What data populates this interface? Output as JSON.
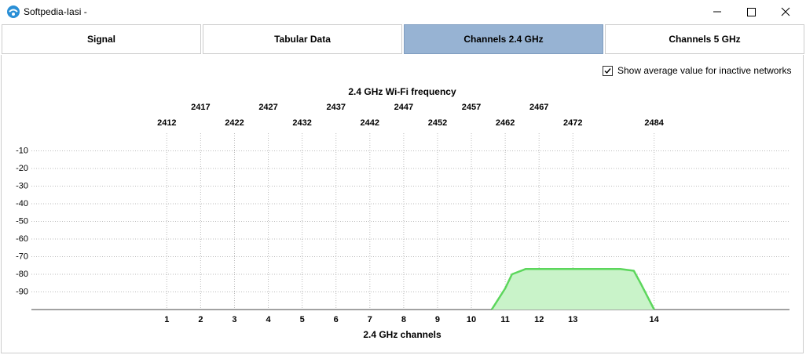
{
  "window": {
    "title": "Softpedia-Iasi -"
  },
  "tabs": [
    "Signal",
    "Tabular Data",
    "Channels 2.4 GHz",
    "Channels 5 GHz"
  ],
  "active_tab": 2,
  "checkbox": {
    "label": "Show average value for inactive networks",
    "checked": true
  },
  "chart_data": {
    "type": "area",
    "title": "2.4 GHz Wi-Fi frequency",
    "x_label": "2.4 GHz channels",
    "xlim": [
      2392,
      2504
    ],
    "ylim": [
      -100,
      0
    ],
    "yticks": [
      -10,
      -20,
      -30,
      -40,
      -50,
      -60,
      -70,
      -80,
      -90
    ],
    "freq_ticks": [
      2412,
      2417,
      2422,
      2427,
      2432,
      2437,
      2442,
      2447,
      2452,
      2457,
      2462,
      2467,
      2472,
      2484
    ],
    "xticks": [
      {
        "value": 2412,
        "label": "1"
      },
      {
        "value": 2417,
        "label": "2"
      },
      {
        "value": 2422,
        "label": "3"
      },
      {
        "value": 2427,
        "label": "4"
      },
      {
        "value": 2432,
        "label": "5"
      },
      {
        "value": 2437,
        "label": "6"
      },
      {
        "value": 2442,
        "label": "7"
      },
      {
        "value": 2447,
        "label": "8"
      },
      {
        "value": 2452,
        "label": "9"
      },
      {
        "value": 2457,
        "label": "10"
      },
      {
        "value": 2462,
        "label": "11"
      },
      {
        "value": 2467,
        "label": "12"
      },
      {
        "value": 2472,
        "label": "13"
      },
      {
        "value": 2484,
        "label": "14"
      }
    ],
    "grid": true,
    "series": [
      {
        "color": "#5cd65c",
        "fill": "#c9f3c9",
        "x": [
          2460,
          2462,
          2463,
          2465,
          2479,
          2481,
          2482,
          2484
        ],
        "values": [
          -100,
          -88,
          -80,
          -77,
          -77,
          -78,
          -85,
          -100
        ]
      }
    ]
  }
}
